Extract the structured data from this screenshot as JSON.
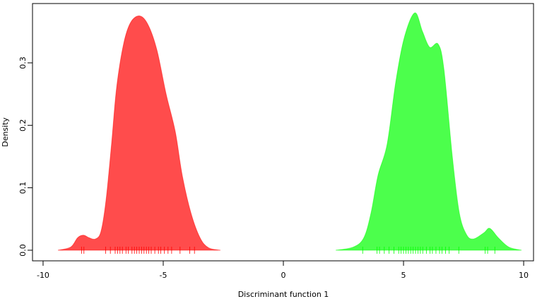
{
  "chart_data": {
    "type": "density",
    "xlabel": "Discriminant function 1",
    "ylabel": "Density",
    "xlim": [
      -10.44,
      10.41
    ],
    "ylim": [
      -0.017,
      0.395
    ],
    "xticks": [
      -10,
      -5,
      0,
      5,
      10
    ],
    "yticks": [
      {
        "value": 0,
        "label": "0.0"
      },
      0.1,
      0.2,
      0.3
    ],
    "series": [
      {
        "color": "#ff0000",
        "x": [
          -9.38,
          -8.85,
          -8.56,
          -8.32,
          -8.09,
          -7.82,
          -7.59,
          -7.38,
          -7.15,
          -6.94,
          -6.65,
          -6.35,
          -5.97,
          -5.62,
          -5.26,
          -4.88,
          -4.5,
          -4.21,
          -3.85,
          -3.47,
          -3.12,
          -2.62
        ],
        "values": [
          0,
          0.005,
          0.02,
          0.024,
          0.02,
          0.018,
          0.03,
          0.08,
          0.17,
          0.26,
          0.33,
          0.365,
          0.375,
          0.36,
          0.32,
          0.25,
          0.19,
          0.12,
          0.06,
          0.02,
          0.004,
          0
        ],
        "rug": [
          -8.4,
          -8.3,
          -7.4,
          -7.2,
          -7.0,
          -6.9,
          -6.8,
          -6.7,
          -6.55,
          -6.45,
          -6.3,
          -6.2,
          -6.1,
          -6.0,
          -5.9,
          -5.8,
          -5.7,
          -5.6,
          -5.5,
          -5.35,
          -5.2,
          -5.1,
          -4.95,
          -4.8,
          -4.65,
          -4.3,
          -3.9,
          -3.7
        ]
      },
      {
        "color": "#00ff00",
        "x": [
          2.18,
          2.91,
          3.35,
          3.65,
          3.94,
          4.32,
          4.68,
          5.03,
          5.47,
          5.79,
          6.09,
          6.44,
          6.68,
          7.03,
          7.32,
          7.62,
          7.91,
          8.35,
          8.59,
          8.94,
          9.38,
          9.91
        ],
        "values": [
          0,
          0.005,
          0.02,
          0.06,
          0.12,
          0.17,
          0.27,
          0.34,
          0.38,
          0.35,
          0.325,
          0.33,
          0.29,
          0.15,
          0.06,
          0.025,
          0.018,
          0.028,
          0.035,
          0.02,
          0.005,
          0
        ],
        "rug": [
          3.3,
          3.9,
          4.0,
          4.2,
          4.4,
          4.6,
          4.8,
          4.9,
          5.0,
          5.1,
          5.2,
          5.3,
          5.4,
          5.5,
          5.6,
          5.7,
          5.8,
          5.95,
          6.1,
          6.2,
          6.35,
          6.5,
          6.6,
          6.75,
          6.9,
          7.3,
          8.4,
          8.5,
          8.8
        ]
      }
    ]
  }
}
